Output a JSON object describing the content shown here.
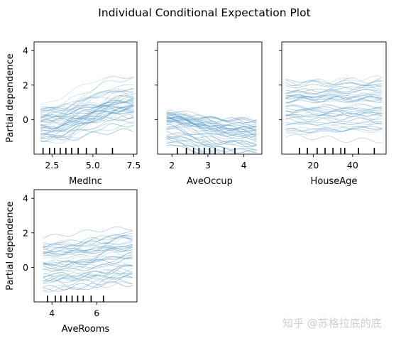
{
  "title": "Individual Conditional Expectation Plot",
  "ylabel": "Partial dependence",
  "watermark": "知乎 @苏格拉底的底",
  "line_color": "#5b9bc8",
  "chart_data": [
    {
      "type": "line",
      "xlabel": "MedInc",
      "xlim": [
        1.4,
        7.7
      ],
      "ylim": [
        -2,
        4.5
      ],
      "xticks": [
        2.5,
        5.0,
        7.5
      ],
      "xtick_labels": [
        "2.5",
        "5.0",
        "7.5"
      ],
      "yticks": [
        0,
        2,
        4
      ],
      "ytick_labels": [
        "0",
        "2",
        "4"
      ],
      "show_ytick_labels": true,
      "show_ylabel": true,
      "x_range": [
        1.8,
        7.5
      ],
      "rug": [
        1.95,
        2.35,
        2.65,
        3.0,
        3.35,
        3.7,
        4.1,
        4.6,
        5.2,
        6.2
      ],
      "pattern": "rising",
      "n_lines": 45
    },
    {
      "type": "line",
      "xlabel": "AveOccup",
      "xlim": [
        1.6,
        4.5
      ],
      "ylim": [
        -2,
        4.5
      ],
      "xticks": [
        2,
        3,
        4
      ],
      "xtick_labels": [
        "2",
        "3",
        "4"
      ],
      "yticks": [
        0,
        2,
        4
      ],
      "ytick_labels": [
        "",
        "",
        ""
      ],
      "show_ytick_labels": false,
      "show_ylabel": false,
      "x_range": [
        1.85,
        4.35
      ],
      "rug": [
        2.15,
        2.4,
        2.6,
        2.75,
        2.9,
        3.05,
        3.2,
        3.45,
        3.75
      ],
      "pattern": "falling",
      "n_lines": 45
    },
    {
      "type": "line",
      "xlabel": "HouseAge",
      "xlim": [
        4,
        57
      ],
      "ylim": [
        -2,
        4.5
      ],
      "xticks": [
        20,
        40
      ],
      "xtick_labels": [
        "20",
        "40"
      ],
      "yticks": [
        0,
        2,
        4
      ],
      "ytick_labels": [
        "",
        "",
        ""
      ],
      "show_ytick_labels": false,
      "show_ylabel": false,
      "x_range": [
        6,
        55
      ],
      "rug": [
        13,
        17,
        22,
        26,
        30,
        34,
        36,
        43,
        51
      ],
      "pattern": "flat",
      "n_lines": 45
    },
    {
      "type": "line",
      "xlabel": "AveRooms",
      "xlim": [
        3.2,
        7.8
      ],
      "ylim": [
        -2,
        4.5
      ],
      "xticks": [
        4,
        6
      ],
      "xtick_labels": [
        "4",
        "6"
      ],
      "yticks": [
        0,
        2,
        4
      ],
      "ytick_labels": [
        "0",
        "2",
        "4"
      ],
      "show_ytick_labels": true,
      "show_ylabel": true,
      "x_range": [
        3.6,
        7.6
      ],
      "rug": [
        3.8,
        4.15,
        4.4,
        4.65,
        4.9,
        5.15,
        5.4,
        5.75,
        6.3
      ],
      "pattern": "rising_mild",
      "n_lines": 45
    }
  ]
}
